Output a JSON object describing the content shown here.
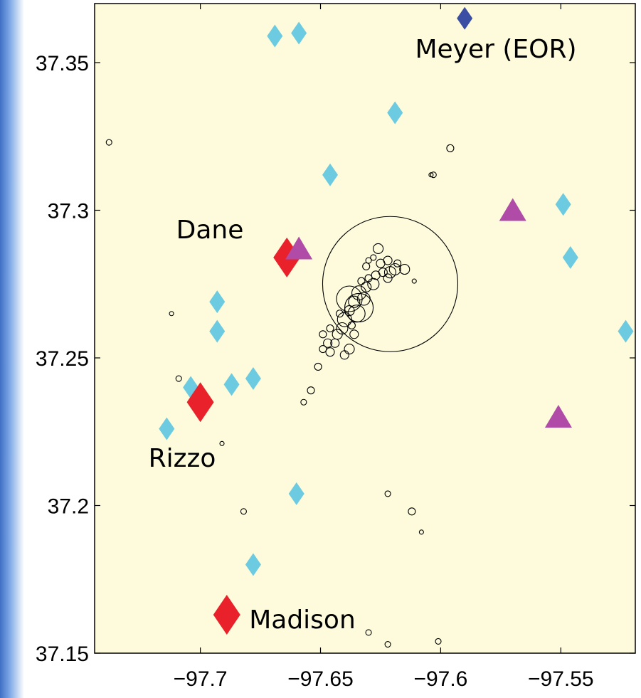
{
  "chart_data": {
    "type": "scatter",
    "xlim": [
      -97.744,
      -97.519
    ],
    "ylim": [
      37.15,
      37.37
    ],
    "xticks": [
      {
        "value": -97.7,
        "label": "−97.7"
      },
      {
        "value": -97.65,
        "label": "−97.65"
      },
      {
        "value": -97.6,
        "label": "−97.6"
      },
      {
        "value": -97.55,
        "label": "−97.55"
      }
    ],
    "yticks": [
      37.15,
      37.2,
      37.25,
      37.3,
      37.35
    ],
    "grid": false,
    "annotations": [
      "Meyer (EOR)",
      "Dane",
      "Rizzo",
      "Madison"
    ],
    "series": [
      {
        "marker": "diamond",
        "color": "#6ccbe0",
        "x": [
          -97.669,
          -97.659,
          -97.619,
          -97.646,
          -97.549,
          -97.546,
          -97.693,
          -97.693,
          -97.523,
          -97.678,
          -97.687,
          -97.704,
          -97.714,
          -97.66,
          -97.678
        ],
        "y": [
          37.359,
          37.36,
          37.333,
          37.312,
          37.302,
          37.284,
          37.269,
          37.259,
          37.259,
          37.243,
          37.241,
          37.24,
          37.226,
          37.204,
          37.18
        ]
      },
      {
        "marker": "diamond-large",
        "color": "#e8212a",
        "x": [
          -97.664,
          -97.7,
          -97.689
        ],
        "y": [
          37.284,
          37.235,
          37.163
        ]
      },
      {
        "marker": "diamond",
        "color": "#3a4ea3",
        "x": [
          -97.59
        ],
        "y": [
          37.365
        ]
      },
      {
        "marker": "triangle",
        "color": "#b04ca8",
        "x": [
          -97.659,
          -97.57,
          -97.551
        ],
        "y": [
          37.287,
          37.3,
          37.23
        ]
      },
      {
        "marker": "circle",
        "color": "#000000",
        "x": [
          -97.626,
          -97.622,
          -97.619,
          -97.615,
          -97.621,
          -97.624,
          -97.627,
          -97.63,
          -97.628,
          -97.631,
          -97.634,
          -97.632,
          -97.636,
          -97.635,
          -97.638,
          -97.64,
          -97.641,
          -97.643,
          -97.644,
          -97.647,
          -97.649,
          -97.638,
          -97.64,
          -97.646,
          -97.649,
          -97.63,
          -97.628,
          -97.631,
          -97.625,
          -97.622,
          -97.633,
          -97.618,
          -97.636,
          -97.637,
          -97.642,
          -97.646,
          -97.634,
          -97.638,
          -97.738,
          -97.712,
          -97.709,
          -97.691,
          -97.682,
          -97.654,
          -97.657,
          -97.651,
          -97.622,
          -97.612,
          -97.608,
          -97.63,
          -97.622,
          -97.601,
          -97.596,
          -97.604,
          -97.603,
          -97.611,
          -97.621
        ],
        "y": [
          37.287,
          37.283,
          37.28,
          37.28,
          37.279,
          37.279,
          37.278,
          37.277,
          37.275,
          37.274,
          37.272,
          37.27,
          37.269,
          37.265,
          37.266,
          37.263,
          37.26,
          37.258,
          37.255,
          37.255,
          37.253,
          37.253,
          37.251,
          37.252,
          37.258,
          37.283,
          37.284,
          37.281,
          37.282,
          37.277,
          37.276,
          37.282,
          37.258,
          37.261,
          37.265,
          37.26,
          37.267,
          37.27,
          37.323,
          37.265,
          37.243,
          37.221,
          37.198,
          37.239,
          37.235,
          37.247,
          37.204,
          37.198,
          37.191,
          37.157,
          37.153,
          37.154,
          37.321,
          37.312,
          37.312,
          37.276,
          37.275
        ],
        "sizes": [
          7,
          6,
          8,
          7,
          8,
          6,
          6,
          5,
          8,
          7,
          10,
          9,
          8,
          12,
          7,
          10,
          8,
          7,
          6,
          6,
          5,
          7,
          6,
          6,
          5,
          4,
          4,
          5,
          6,
          6,
          5,
          5,
          6,
          5,
          5,
          5,
          20,
          18,
          4,
          3,
          4,
          3,
          4,
          5,
          4,
          5,
          4,
          5,
          3,
          4,
          4,
          4,
          5,
          3,
          4,
          3,
          95
        ]
      }
    ]
  }
}
